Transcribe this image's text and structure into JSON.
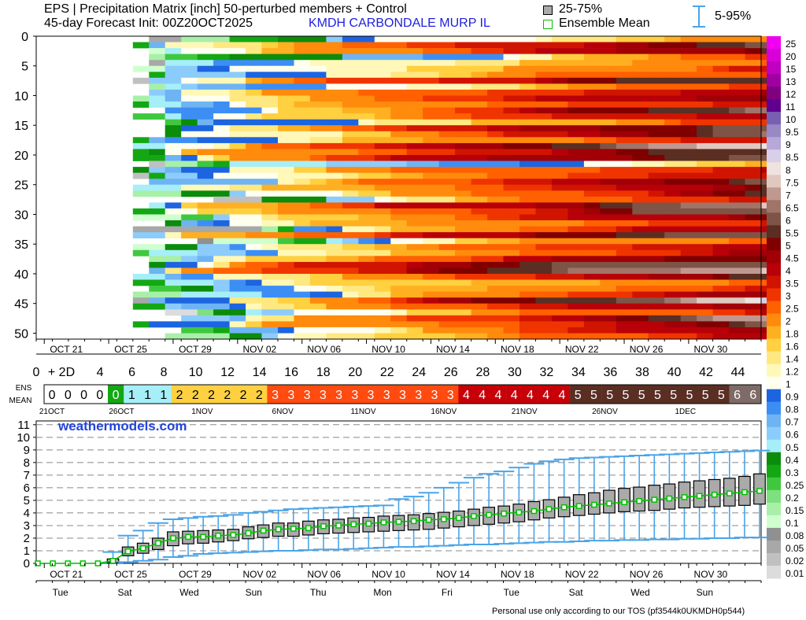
{
  "header": {
    "line1": "EPS | Precipitation Matrix [inch]  50-perturbed members + Control",
    "line2": "45-day Forecast Init: 00Z20OCT2025",
    "location": "KMDH  CARBONDALE MURP IL",
    "legend_iqr": "25-75%",
    "legend_mean": "Ensemble Mean",
    "legend_range": "5-95%"
  },
  "footer": "Personal use only according to our TOS (pf3544k0UKMDH0p544)",
  "watermark": "weathermodels.com",
  "colors": {
    "ramp": [
      "#dcdcdc",
      "#c0c0c0",
      "#a8a8a8",
      "#909090",
      "#cfffcf",
      "#a8f0a8",
      "#7ee07e",
      "#3fc83f",
      "#13a813",
      "#0b8c0b",
      "#a6eef8",
      "#8cccfc",
      "#6eb4f4",
      "#3d8ef4",
      "#1c64e0",
      "#fffff0",
      "#fff8b8",
      "#ffe880",
      "#ffd040",
      "#ffb020",
      "#ff8a0c",
      "#ff6000",
      "#f03400",
      "#d01400",
      "#b80008",
      "#a00006",
      "#800000",
      "#5a2e22",
      "#7e5446",
      "#a07468",
      "#c09890",
      "#e0c8c0",
      "#f0e2de",
      "#d8d0ea",
      "#b8a8d8",
      "#9888c4",
      "#7860b0",
      "#600090",
      "#800080",
      "#a000a0",
      "#c000c0",
      "#d800d8",
      "#f000f0",
      "#ff48ff"
    ],
    "ensemble_mean": "#00c000",
    "range": "#4aa4e8"
  },
  "chart_data": [
    {
      "type": "heatmap",
      "title": "EPS | Precipitation Matrix [inch]  50-perturbed members + Control",
      "y_ticks": [
        "0",
        "5",
        "10",
        "15",
        "20",
        "25",
        "30",
        "35",
        "40",
        "45",
        "50"
      ],
      "x_date_labels": [
        "OCT 21",
        "OCT 25",
        "OCT 29",
        "NOV 02",
        "NOV 06",
        "NOV 10",
        "NOV 14",
        "NOV 18",
        "NOV 22",
        "NOV 26",
        "NOV 30"
      ],
      "x_day_labels": [
        "0",
        "+ 2D",
        "4",
        "6",
        "8",
        "10",
        "12",
        "14",
        "16",
        "18",
        "20",
        "22",
        "24",
        "26",
        "28",
        "30",
        "32",
        "34",
        "36",
        "38",
        "40",
        "42",
        "44"
      ],
      "colorbar_labels": [
        "25",
        "20",
        "15",
        "13",
        "12",
        "11",
        "10",
        "9.5",
        "9",
        "8.5",
        "8",
        "7.5",
        "7",
        "6.5",
        "6",
        "5.5",
        "5",
        "4.5",
        "4",
        "3.5",
        "3",
        "2.5",
        "2",
        "1.8",
        "1.6",
        "1.4",
        "1.2",
        "1",
        "0.9",
        "0.8",
        "0.7",
        "0.6",
        "0.5",
        "0.4",
        "0.3",
        "0.25",
        "0.2",
        "0.15",
        "0.1",
        "0.08",
        "0.05",
        "0.02",
        "0.01"
      ],
      "colorbar_thresholds": [
        0.01,
        0.02,
        0.05,
        0.08,
        0.1,
        0.15,
        0.2,
        0.25,
        0.3,
        0.4,
        0.5,
        0.6,
        0.7,
        0.8,
        0.9,
        1,
        1.2,
        1.4,
        1.6,
        1.8,
        2,
        2.5,
        3,
        3.5,
        4,
        4.5,
        5,
        5.5,
        6,
        6.5,
        7,
        7.5,
        8,
        8.5,
        9,
        9.5,
        10,
        11,
        12,
        13,
        15,
        20,
        25
      ],
      "members": 51,
      "days": 45
    },
    {
      "type": "table",
      "row_label_top": "ENS",
      "row_label_bottom": "MEAN",
      "values": [
        0,
        0,
        0,
        0,
        0,
        1,
        1,
        1,
        2,
        2,
        2,
        2,
        2,
        2,
        3,
        3,
        3,
        3,
        3,
        3,
        3,
        3,
        3,
        3,
        3,
        3,
        4,
        4,
        4,
        4,
        4,
        4,
        4,
        5,
        5,
        5,
        5,
        5,
        5,
        5,
        5,
        5,
        5,
        6,
        6
      ],
      "date_labels": [
        "21OCT",
        "26OCT",
        "1NOV",
        "6NOV",
        "11NOV",
        "16NOV",
        "21NOV",
        "26NOV",
        "1DEC"
      ]
    },
    {
      "type": "line",
      "y_ticks": [
        "0",
        "1",
        "2",
        "3",
        "4",
        "5",
        "6",
        "7",
        "8",
        "9",
        "10",
        "11"
      ],
      "ylim": [
        0,
        11.3
      ],
      "x_date_labels": [
        "OCT 21",
        "OCT 25",
        "OCT 29",
        "NOV 02",
        "NOV 06",
        "NOV 10",
        "NOV 14",
        "NOV 18",
        "NOV 22",
        "NOV 26",
        "NOV 30"
      ],
      "x_weekday_labels": [
        "Tue",
        "Sat",
        "Wed",
        "Sun",
        "Thu",
        "Mon",
        "Fri",
        "Tue",
        "Sat",
        "Wed",
        "Sun"
      ],
      "mean": [
        0,
        0,
        0,
        0,
        0,
        0.2,
        0.95,
        1.2,
        1.6,
        2.0,
        2.1,
        2.1,
        2.2,
        2.25,
        2.4,
        2.6,
        2.7,
        2.75,
        2.8,
        2.95,
        3.0,
        3.1,
        3.15,
        3.25,
        3.3,
        3.35,
        3.45,
        3.5,
        3.6,
        3.75,
        3.85,
        3.95,
        4.05,
        4.15,
        4.3,
        4.45,
        4.55,
        4.65,
        4.75,
        4.85,
        4.95,
        5.05,
        5.15,
        5.25,
        5.35,
        5.45,
        5.55,
        5.65,
        5.75
      ],
      "q25": [
        0,
        0,
        0,
        0,
        0,
        0.05,
        0.6,
        0.8,
        1.1,
        1.4,
        1.55,
        1.6,
        1.7,
        1.8,
        1.95,
        2.05,
        2.15,
        2.15,
        2.25,
        2.35,
        2.4,
        2.45,
        2.5,
        2.55,
        2.6,
        2.65,
        2.7,
        2.8,
        2.9,
        3.0,
        3.1,
        3.2,
        3.3,
        3.45,
        3.6,
        3.7,
        3.8,
        3.9,
        4.0,
        4.1,
        4.15,
        4.2,
        4.3,
        4.4,
        4.45,
        4.5,
        4.55,
        4.6,
        4.7
      ],
      "q75": [
        0,
        0,
        0,
        0,
        0,
        0.35,
        1.3,
        1.6,
        2.0,
        2.5,
        2.55,
        2.6,
        2.65,
        2.7,
        2.9,
        3.05,
        3.2,
        3.2,
        3.35,
        3.45,
        3.5,
        3.6,
        3.65,
        3.75,
        3.8,
        3.85,
        3.95,
        4.05,
        4.15,
        4.3,
        4.45,
        4.55,
        4.7,
        4.9,
        5.05,
        5.25,
        5.45,
        5.6,
        5.8,
        5.95,
        6.05,
        6.2,
        6.3,
        6.45,
        6.55,
        6.65,
        6.75,
        6.9,
        7.1
      ],
      "p5": [
        0,
        0,
        0,
        0,
        0,
        0,
        0.1,
        0.2,
        0.3,
        0.5,
        0.6,
        0.75,
        0.8,
        0.85,
        0.9,
        0.95,
        1.0,
        1.0,
        1.05,
        1.1,
        1.1,
        1.15,
        1.2,
        1.25,
        1.3,
        1.3,
        1.35,
        1.4,
        1.45,
        1.5,
        1.5,
        1.55,
        1.6,
        1.65,
        1.7,
        1.7,
        1.75,
        1.8,
        1.8,
        1.85,
        1.85,
        1.9,
        1.9,
        1.95,
        1.95,
        2.0,
        2.0,
        2.05,
        2.05
      ],
      "p95": [
        0,
        0,
        0,
        0,
        0,
        0.9,
        2.2,
        2.6,
        3.2,
        3.5,
        3.6,
        3.7,
        3.75,
        3.85,
        4.0,
        4.1,
        4.2,
        4.3,
        4.35,
        4.4,
        4.45,
        4.5,
        4.55,
        4.6,
        5.1,
        5.3,
        5.6,
        6.0,
        6.4,
        6.8,
        7.1,
        7.3,
        7.6,
        7.9,
        8.1,
        8.25,
        8.35,
        8.4,
        8.45,
        8.5,
        8.55,
        8.6,
        8.65,
        8.7,
        8.75,
        8.8,
        8.85,
        8.9,
        8.95
      ]
    }
  ]
}
